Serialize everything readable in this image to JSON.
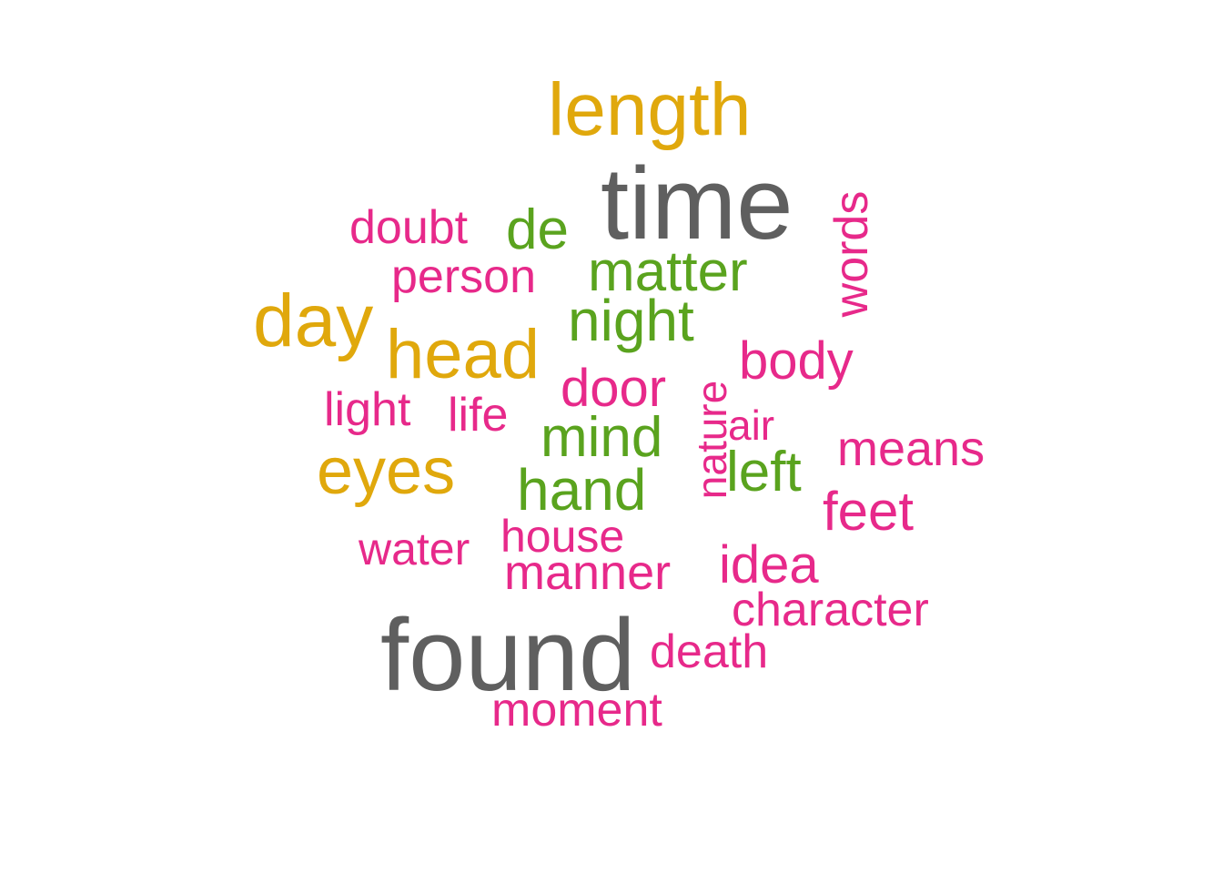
{
  "palette": {
    "gray": "#5f5f5f",
    "gold": "#e0a80c",
    "green": "#5aa31e",
    "pink": "#e7298a"
  },
  "words": [
    {
      "text": "time",
      "color": "gray"
    },
    {
      "text": "found",
      "color": "gray"
    },
    {
      "text": "length",
      "color": "gold"
    },
    {
      "text": "day",
      "color": "gold"
    },
    {
      "text": "head",
      "color": "gold"
    },
    {
      "text": "eyes",
      "color": "gold"
    },
    {
      "text": "de",
      "color": "green"
    },
    {
      "text": "matter",
      "color": "green"
    },
    {
      "text": "night",
      "color": "green"
    },
    {
      "text": "mind",
      "color": "green"
    },
    {
      "text": "hand",
      "color": "green"
    },
    {
      "text": "left",
      "color": "green"
    },
    {
      "text": "doubt",
      "color": "pink"
    },
    {
      "text": "person",
      "color": "pink"
    },
    {
      "text": "words",
      "color": "pink"
    },
    {
      "text": "body",
      "color": "pink"
    },
    {
      "text": "door",
      "color": "pink"
    },
    {
      "text": "light",
      "color": "pink"
    },
    {
      "text": "life",
      "color": "pink"
    },
    {
      "text": "nature",
      "color": "pink"
    },
    {
      "text": "air",
      "color": "pink"
    },
    {
      "text": "means",
      "color": "pink"
    },
    {
      "text": "feet",
      "color": "pink"
    },
    {
      "text": "water",
      "color": "pink"
    },
    {
      "text": "house",
      "color": "pink"
    },
    {
      "text": "manner",
      "color": "pink"
    },
    {
      "text": "idea",
      "color": "pink"
    },
    {
      "text": "character",
      "color": "pink"
    },
    {
      "text": "death",
      "color": "pink"
    },
    {
      "text": "moment",
      "color": "pink"
    }
  ]
}
